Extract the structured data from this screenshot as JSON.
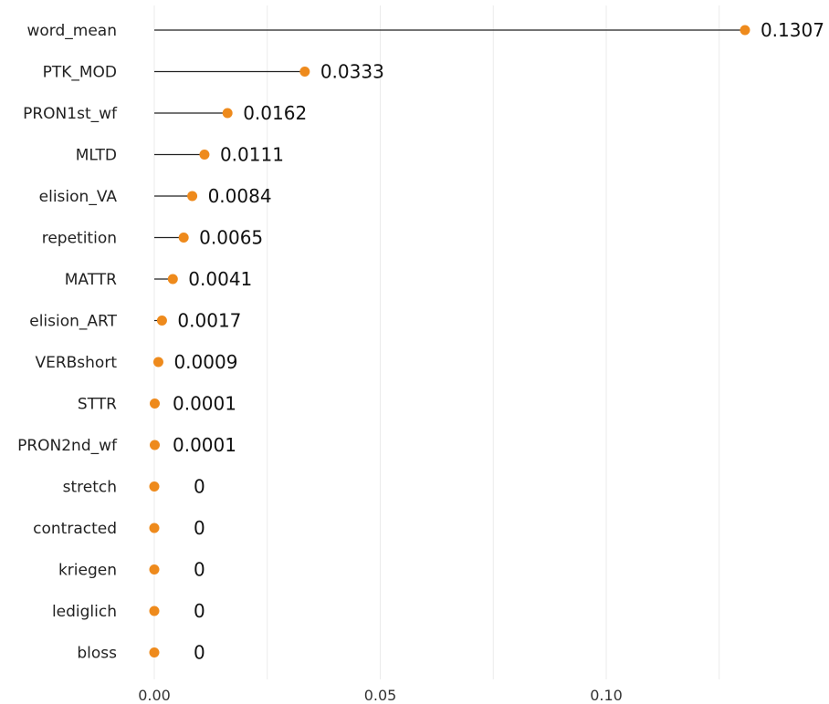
{
  "chart_data": {
    "type": "lollipop",
    "title": "",
    "xlabel": "",
    "ylabel": "",
    "xlim": [
      0,
      0.14
    ],
    "xticks": [
      {
        "value": 0.0,
        "label": "0.00"
      },
      {
        "value": 0.05,
        "label": "0.05"
      },
      {
        "value": 0.1,
        "label": "0.10"
      }
    ],
    "grid": true,
    "legend": "none",
    "point_color": "#ee8a1c",
    "stem_color": "#222222",
    "grid_color": "#ebebeb",
    "categories": [
      "word_mean",
      "PTK_MOD",
      "PRON1st_wf",
      "MLTD",
      "elision_VA",
      "repetition",
      "MATTR",
      "elision_ART",
      "VERBshort",
      "STTR",
      "PRON2nd_wf",
      "stretch",
      "contracted",
      "kriegen",
      "lediglich",
      "bloss"
    ],
    "values": [
      0.1307,
      0.0333,
      0.0162,
      0.0111,
      0.0084,
      0.0065,
      0.0041,
      0.0017,
      0.0009,
      0.0001,
      0.0001,
      0,
      0,
      0,
      0,
      0
    ],
    "value_labels": [
      "0.1307",
      "0.0333",
      "0.0162",
      "0.0111",
      "0.0084",
      "0.0065",
      "0.0041",
      "0.0017",
      "0.0009",
      "0.0001",
      "0.0001",
      "0",
      "0",
      "0",
      "0",
      "0"
    ]
  }
}
